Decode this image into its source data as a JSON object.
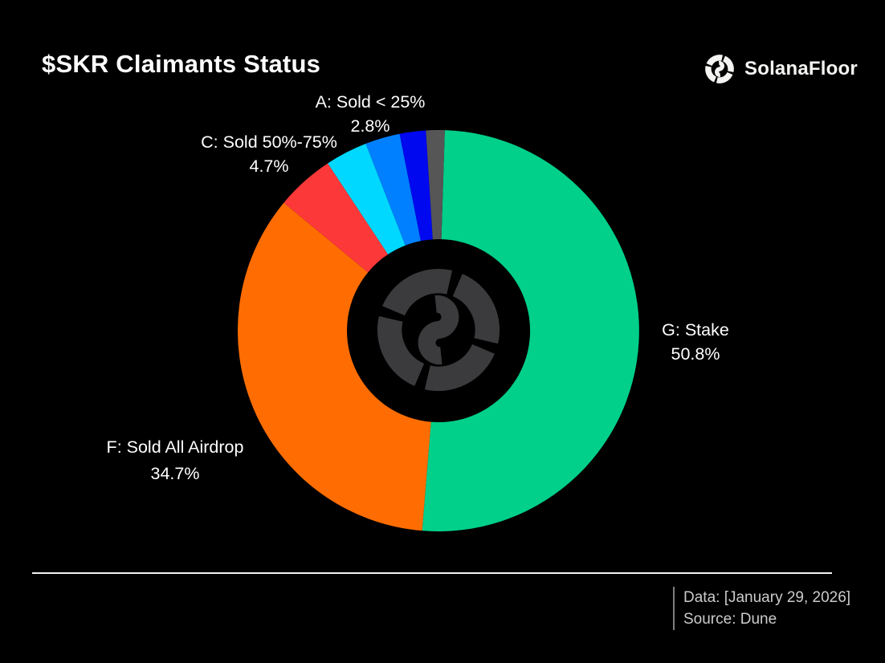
{
  "header": {
    "title": "$SKR Claimants Status",
    "brand": "SolanaFloor"
  },
  "chart_data": {
    "type": "pie",
    "subtype": "donut",
    "title": "$SKR Claimants Status",
    "start_angle_deg_clockwise_from_top": 1.8,
    "outer_radius_px": 250,
    "inner_radius_px": 114,
    "background": "#000000",
    "slices": [
      {
        "label": "G: Stake",
        "value": 50.8,
        "color": "#00D089",
        "labeled": true
      },
      {
        "label": "F: Sold All Airdrop",
        "value": 34.7,
        "color": "#FF6D02",
        "labeled": true
      },
      {
        "label": "C: Sold 50%-75%",
        "value": 4.7,
        "color": "#FC3839",
        "labeled": true
      },
      {
        "label": "",
        "value": 3.4,
        "color": "#00D8FF",
        "labeled": false
      },
      {
        "label": "A: Sold < 25%",
        "value": 2.8,
        "color": "#0080FF",
        "labeled": true
      },
      {
        "label": "",
        "value": 2.1,
        "color": "#0008F0",
        "labeled": false
      },
      {
        "label": "",
        "value": 1.5,
        "color": "#565656",
        "labeled": false
      }
    ]
  },
  "callouts": {
    "a": {
      "line1": "A: Sold < 25%",
      "line2": "2.8%"
    },
    "c": {
      "line1": "C: Sold 50%-75%",
      "line2": "4.7%"
    },
    "g": {
      "line1": "G: Stake",
      "line2": "50.8%"
    },
    "f": {
      "line1": "F: Sold All Airdrop",
      "line2": "34.7%"
    }
  },
  "footer": {
    "data_line": "Data: [January 29, 2026]",
    "source_line": "Source: Dune"
  },
  "colors": {
    "background": "#000000",
    "title_text": "#FFFFFF",
    "label_text": "#FFFFFF",
    "footer_text": "#CBCBCB",
    "divider": "#F2F2F2",
    "center_logo": "#3B3B3D",
    "brand_logo": "#F4F4F2"
  }
}
